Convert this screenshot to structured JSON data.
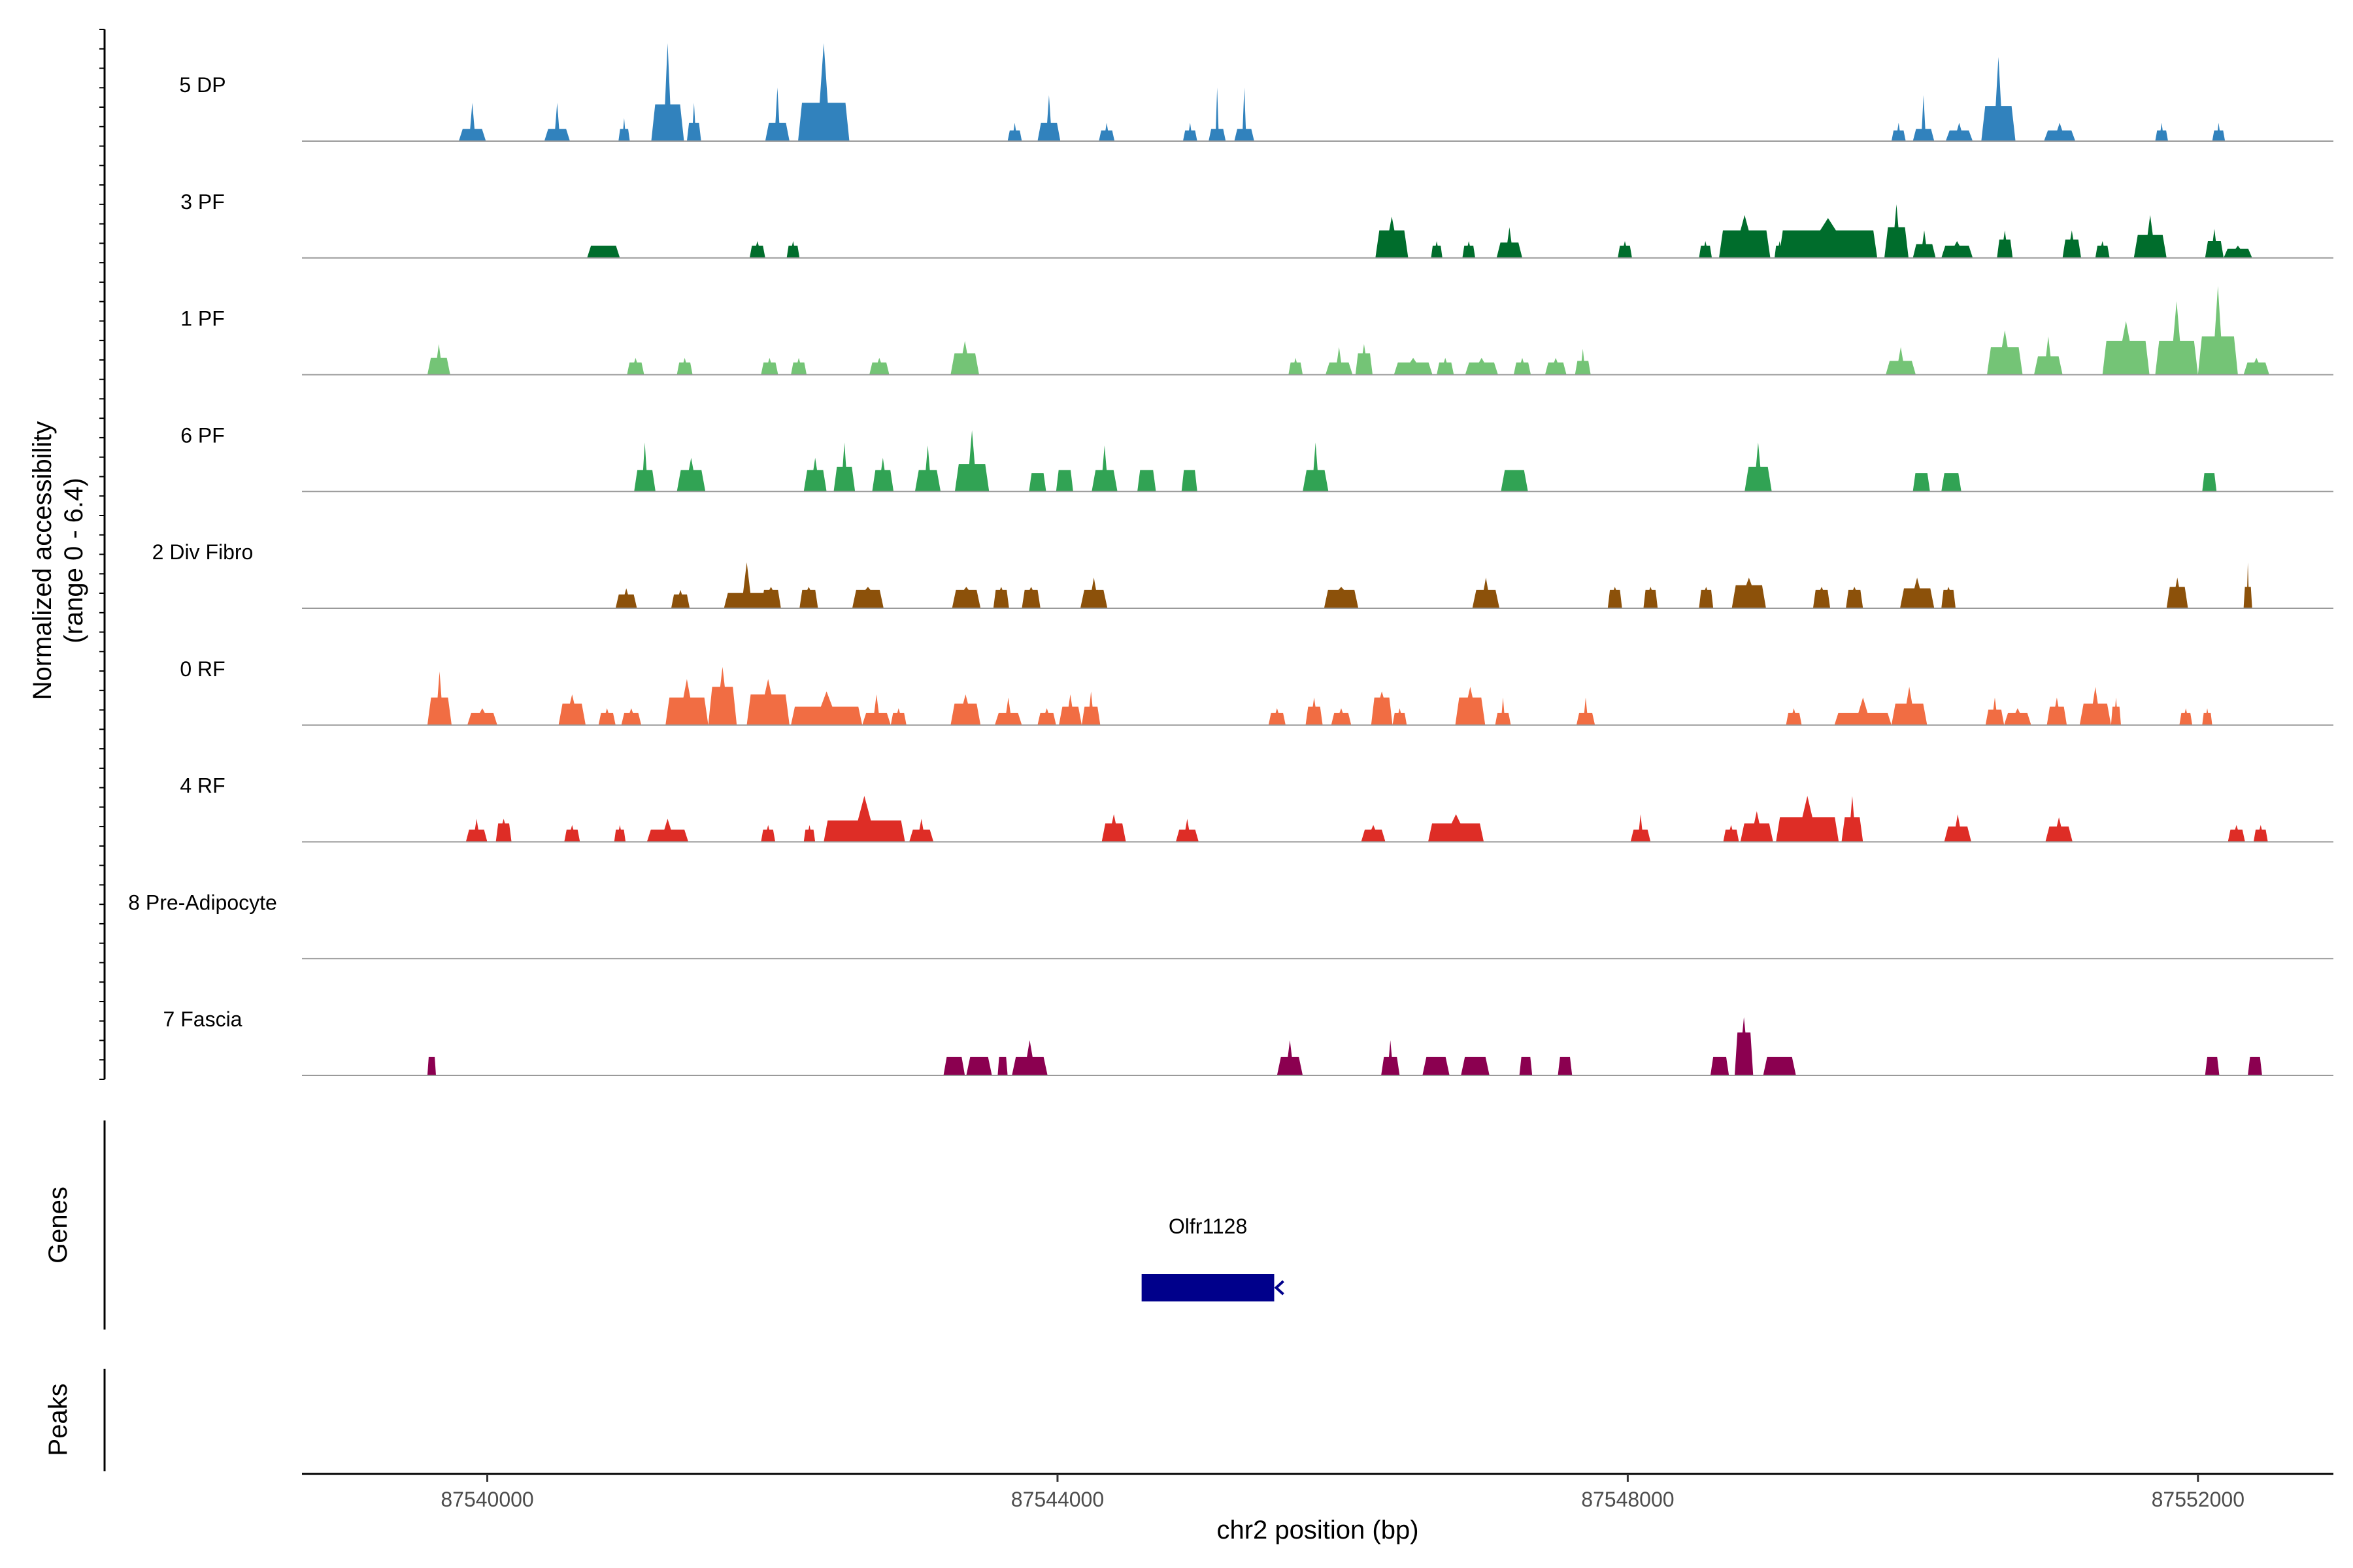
{
  "chart_data": {
    "type": "area",
    "title": "",
    "xlabel": "chr2 position (bp)",
    "ylabel": "Normalized accessibility",
    "ylabel_range": "(range 0 - 6.4)",
    "y_range": [
      0,
      6.4
    ],
    "xlim": [
      87538700,
      87552950
    ],
    "x_ticks": [
      87540000,
      87544000,
      87548000,
      87552000
    ],
    "x_tick_labels": [
      "87540000",
      "87544000",
      "87548000",
      "87552000"
    ],
    "genes_label": "Genes",
    "peaks_label": "Peaks",
    "gene": {
      "name": "Olfr1128",
      "start": 87544590,
      "end": 87545520,
      "strand": "-",
      "color": "#00008b"
    },
    "tracks": [
      {
        "name": "5 DP",
        "color": "#3182bd",
        "peaks": [
          [
            87539800,
            87539990,
            0.8,
            2.5
          ],
          [
            87540400,
            87540580,
            0.8,
            2.5
          ],
          [
            87540920,
            87541000,
            0.8,
            1.5
          ],
          [
            87541150,
            87541380,
            2.4,
            6.4
          ],
          [
            87541400,
            87541500,
            1.2,
            2.5
          ],
          [
            87541950,
            87542120,
            1.2,
            3.5
          ],
          [
            87542180,
            87542540,
            2.5,
            6.4
          ],
          [
            87543650,
            87543750,
            0.7,
            1.2
          ],
          [
            87543860,
            87544020,
            1.2,
            3.0
          ],
          [
            87544290,
            87544400,
            0.7,
            1.2
          ],
          [
            87544880,
            87544980,
            0.7,
            1.2
          ],
          [
            87545060,
            87545180,
            0.8,
            3.5
          ],
          [
            87545240,
            87545380,
            0.8,
            3.5
          ],
          [
            87549850,
            87549950,
            0.7,
            1.2
          ],
          [
            87550000,
            87550150,
            0.8,
            3.0
          ],
          [
            87550230,
            87550420,
            0.7,
            1.2
          ],
          [
            87550480,
            87550720,
            2.3,
            5.5
          ],
          [
            87550920,
            87551140,
            0.7,
            1.2
          ],
          [
            87551700,
            87551790,
            0.7,
            1.2
          ],
          [
            87552100,
            87552190,
            0.7,
            1.2
          ]
        ]
      },
      {
        "name": "3 PF",
        "color": "#006d2c",
        "peaks": [
          [
            87540700,
            87540930,
            0.8,
            0.8
          ],
          [
            87541840,
            87541950,
            0.8,
            1.1
          ],
          [
            87542100,
            87542190,
            0.8,
            1.1
          ],
          [
            87546230,
            87546460,
            1.8,
            2.7
          ],
          [
            87546620,
            87546700,
            0.8,
            1.1
          ],
          [
            87546840,
            87546930,
            0.8,
            1.1
          ],
          [
            87547080,
            87547260,
            1.0,
            2.0
          ],
          [
            87547930,
            87548030,
            0.8,
            1.1
          ],
          [
            87548500,
            87548590,
            0.8,
            1.1
          ],
          [
            87548640,
            87549000,
            1.8,
            2.8
          ],
          [
            87549030,
            87549100,
            0.8,
            1.1
          ],
          [
            87549060,
            87549750,
            1.8,
            2.6
          ],
          [
            87549800,
            87549970,
            2.0,
            3.5
          ],
          [
            87550000,
            87550160,
            0.9,
            1.8
          ],
          [
            87550200,
            87550420,
            0.8,
            1.1
          ],
          [
            87550590,
            87550700,
            1.2,
            1.8
          ],
          [
            87551050,
            87551180,
            1.2,
            1.8
          ],
          [
            87551280,
            87551380,
            0.8,
            1.1
          ],
          [
            87551550,
            87551780,
            1.5,
            2.8
          ],
          [
            87552050,
            87552180,
            1.1,
            1.9
          ],
          [
            87552180,
            87552380,
            0.6,
            0.8
          ]
        ]
      },
      {
        "name": "1 PF",
        "color": "#74c476",
        "peaks": [
          [
            87539580,
            87539740,
            1.1,
            2.0
          ],
          [
            87540980,
            87541100,
            0.8,
            1.1
          ],
          [
            87541330,
            87541440,
            0.8,
            1.1
          ],
          [
            87541920,
            87542040,
            0.8,
            1.1
          ],
          [
            87542130,
            87542240,
            0.8,
            1.1
          ],
          [
            87542680,
            87542820,
            0.8,
            1.1
          ],
          [
            87543250,
            87543450,
            1.4,
            2.2
          ],
          [
            87545620,
            87545720,
            0.8,
            1.1
          ],
          [
            87545880,
            87546070,
            0.8,
            1.8
          ],
          [
            87546090,
            87546210,
            1.4,
            2.0
          ],
          [
            87546360,
            87546630,
            0.8,
            1.1
          ],
          [
            87546660,
            87546780,
            0.8,
            1.1
          ],
          [
            87546860,
            87547090,
            0.8,
            1.1
          ],
          [
            87547200,
            87547320,
            0.8,
            1.1
          ],
          [
            87547420,
            87547570,
            0.8,
            1.1
          ],
          [
            87547630,
            87547740,
            0.9,
            1.7
          ],
          [
            87549810,
            87550020,
            0.9,
            1.8
          ],
          [
            87550520,
            87550770,
            1.8,
            2.9
          ],
          [
            87550850,
            87551050,
            1.2,
            2.5
          ],
          [
            87551330,
            87551660,
            2.2,
            3.5
          ],
          [
            87551700,
            87552000,
            2.2,
            4.8
          ],
          [
            87552000,
            87552280,
            2.5,
            5.8
          ],
          [
            87552320,
            87552500,
            0.8,
            1.1
          ]
        ]
      },
      {
        "name": "6 PF",
        "color": "#31a354",
        "peaks": [
          [
            87541030,
            87541180,
            1.4,
            3.2
          ],
          [
            87541330,
            87541530,
            1.4,
            2.2
          ],
          [
            87542220,
            87542380,
            1.4,
            2.2
          ],
          [
            87542430,
            87542580,
            1.6,
            3.2
          ],
          [
            87542700,
            87542850,
            1.4,
            2.2
          ],
          [
            87543000,
            87543180,
            1.4,
            3.0
          ],
          [
            87543280,
            87543520,
            1.8,
            4.0
          ],
          [
            87543800,
            87543920,
            1.2,
            1.2
          ],
          [
            87543990,
            87544110,
            1.4,
            1.4
          ],
          [
            87544240,
            87544420,
            1.4,
            3.0
          ],
          [
            87544560,
            87544690,
            1.4,
            1.4
          ],
          [
            87544870,
            87544980,
            1.4,
            1.4
          ],
          [
            87545720,
            87545900,
            1.4,
            3.2
          ],
          [
            87547110,
            87547300,
            1.4,
            1.4
          ],
          [
            87548820,
            87549010,
            1.6,
            3.2
          ],
          [
            87550000,
            87550120,
            1.2,
            1.2
          ],
          [
            87550200,
            87550340,
            1.2,
            1.2
          ],
          [
            87552030,
            87552130,
            1.2,
            1.2
          ]
        ]
      },
      {
        "name": "2 Div Fibro",
        "color": "#8c510a",
        "peaks": [
          [
            87540900,
            87541050,
            0.9,
            1.3
          ],
          [
            87541290,
            87541420,
            0.9,
            1.2
          ],
          [
            87541660,
            87541980,
            1.0,
            3.0
          ],
          [
            87541920,
            87542060,
            1.2,
            1.4
          ],
          [
            87542190,
            87542320,
            1.2,
            1.4
          ],
          [
            87542560,
            87542780,
            1.2,
            1.4
          ],
          [
            87543260,
            87543460,
            1.2,
            1.4
          ],
          [
            87543550,
            87543660,
            1.2,
            1.4
          ],
          [
            87543750,
            87543880,
            1.2,
            1.4
          ],
          [
            87544160,
            87544350,
            1.2,
            2.0
          ],
          [
            87545870,
            87546110,
            1.2,
            1.4
          ],
          [
            87546910,
            87547100,
            1.2,
            2.0
          ],
          [
            87547860,
            87547960,
            1.2,
            1.4
          ],
          [
            87548110,
            87548210,
            1.2,
            1.4
          ],
          [
            87548500,
            87548600,
            1.2,
            1.4
          ],
          [
            87548730,
            87548970,
            1.5,
            2.0
          ],
          [
            87549300,
            87549420,
            1.2,
            1.4
          ],
          [
            87549530,
            87549650,
            1.2,
            1.4
          ],
          [
            87549910,
            87550150,
            1.3,
            2.0
          ],
          [
            87550200,
            87550300,
            1.2,
            1.4
          ],
          [
            87551780,
            87551930,
            1.4,
            2.0
          ],
          [
            87552320,
            87552380,
            1.4,
            3.0
          ]
        ]
      },
      {
        "name": "0 RF",
        "color": "#f16d43",
        "peaks": [
          [
            87539580,
            87539750,
            1.8,
            3.5
          ],
          [
            87539860,
            87540070,
            0.8,
            1.1
          ],
          [
            87540500,
            87540690,
            1.4,
            2.0
          ],
          [
            87540780,
            87540900,
            0.8,
            1.1
          ],
          [
            87540940,
            87541080,
            0.8,
            1.1
          ],
          [
            87541250,
            87541550,
            1.8,
            3.0
          ],
          [
            87541550,
            87541750,
            2.5,
            3.8
          ],
          [
            87541820,
            87542120,
            2.0,
            3.0
          ],
          [
            87542130,
            87542630,
            1.2,
            2.2
          ],
          [
            87542630,
            87542830,
            0.8,
            2.0
          ],
          [
            87542830,
            87542940,
            0.8,
            1.1
          ],
          [
            87543250,
            87543460,
            1.4,
            2.0
          ],
          [
            87543560,
            87543750,
            0.8,
            1.8
          ],
          [
            87543860,
            87543990,
            0.8,
            1.1
          ],
          [
            87544010,
            87544170,
            1.2,
            2.0
          ],
          [
            87544170,
            87544300,
            1.2,
            2.2
          ],
          [
            87545480,
            87545600,
            0.8,
            1.1
          ],
          [
            87545740,
            87545860,
            1.2,
            1.8
          ],
          [
            87545920,
            87546060,
            0.8,
            1.1
          ],
          [
            87546200,
            87546350,
            1.8,
            2.2
          ],
          [
            87546350,
            87546450,
            0.8,
            1.1
          ],
          [
            87546790,
            87547000,
            1.8,
            2.5
          ],
          [
            87547070,
            87547180,
            0.8,
            1.8
          ],
          [
            87547640,
            87547770,
            0.8,
            1.8
          ],
          [
            87549110,
            87549220,
            0.8,
            1.1
          ],
          [
            87549450,
            87549850,
            0.8,
            1.8
          ],
          [
            87549850,
            87550100,
            1.4,
            2.5
          ],
          [
            87550510,
            87550640,
            1.0,
            1.8
          ],
          [
            87550640,
            87550830,
            0.8,
            1.1
          ],
          [
            87550940,
            87551080,
            1.2,
            1.8
          ],
          [
            87551170,
            87551390,
            1.4,
            2.5
          ],
          [
            87551390,
            87551460,
            1.2,
            1.8
          ],
          [
            87551870,
            87551960,
            0.8,
            1.1
          ],
          [
            87552030,
            87552100,
            0.8,
            1.1
          ]
        ]
      },
      {
        "name": "4 RF",
        "color": "#de2d26",
        "peaks": [
          [
            87539850,
            87540000,
            0.8,
            1.5
          ],
          [
            87540060,
            87540170,
            1.2,
            1.5
          ],
          [
            87540540,
            87540650,
            0.8,
            1.1
          ],
          [
            87540890,
            87540970,
            0.8,
            1.1
          ],
          [
            87541120,
            87541410,
            0.8,
            1.5
          ],
          [
            87541920,
            87542020,
            0.8,
            1.1
          ],
          [
            87542220,
            87542300,
            0.8,
            1.1
          ],
          [
            87542360,
            87542930,
            1.4,
            3.0
          ],
          [
            87542960,
            87543130,
            0.8,
            1.5
          ],
          [
            87544310,
            87544480,
            1.2,
            1.8
          ],
          [
            87544830,
            87544990,
            0.8,
            1.5
          ],
          [
            87546130,
            87546300,
            0.8,
            1.1
          ],
          [
            87546600,
            87546990,
            1.2,
            1.8
          ],
          [
            87548020,
            87548160,
            0.8,
            1.8
          ],
          [
            87548670,
            87548780,
            0.8,
            1.1
          ],
          [
            87548790,
            87549020,
            1.2,
            2.0
          ],
          [
            87549040,
            87549480,
            1.6,
            3.0
          ],
          [
            87549500,
            87549650,
            1.6,
            3.0
          ],
          [
            87550220,
            87550410,
            1.0,
            1.8
          ],
          [
            87550930,
            87551120,
            1.0,
            1.6
          ],
          [
            87552210,
            87552330,
            0.8,
            1.1
          ],
          [
            87552390,
            87552490,
            0.8,
            1.1
          ]
        ]
      },
      {
        "name": "8 Pre-Adipocyte",
        "color": "#fd8d3c",
        "peaks": []
      },
      {
        "name": "7 Fascia",
        "color": "#8b0050",
        "peaks": [
          [
            87539580,
            87539640,
            1.2,
            1.2
          ],
          [
            87543200,
            87543350,
            1.2,
            1.2
          ],
          [
            87543360,
            87543540,
            1.2,
            1.2
          ],
          [
            87543580,
            87543650,
            1.2,
            1.2
          ],
          [
            87543680,
            87543930,
            1.2,
            2.3
          ],
          [
            87545540,
            87545720,
            1.2,
            2.3
          ],
          [
            87546270,
            87546400,
            1.2,
            2.3
          ],
          [
            87546560,
            87546750,
            1.2,
            1.2
          ],
          [
            87546830,
            87547030,
            1.2,
            1.2
          ],
          [
            87547240,
            87547330,
            1.2,
            1.2
          ],
          [
            87547510,
            87547610,
            1.2,
            1.2
          ],
          [
            87548580,
            87548710,
            1.2,
            1.2
          ],
          [
            87548750,
            87548880,
            2.8,
            3.8
          ],
          [
            87548950,
            87549180,
            1.2,
            1.2
          ],
          [
            87552050,
            87552150,
            1.2,
            1.2
          ],
          [
            87552350,
            87552450,
            1.2,
            1.2
          ]
        ]
      }
    ]
  }
}
